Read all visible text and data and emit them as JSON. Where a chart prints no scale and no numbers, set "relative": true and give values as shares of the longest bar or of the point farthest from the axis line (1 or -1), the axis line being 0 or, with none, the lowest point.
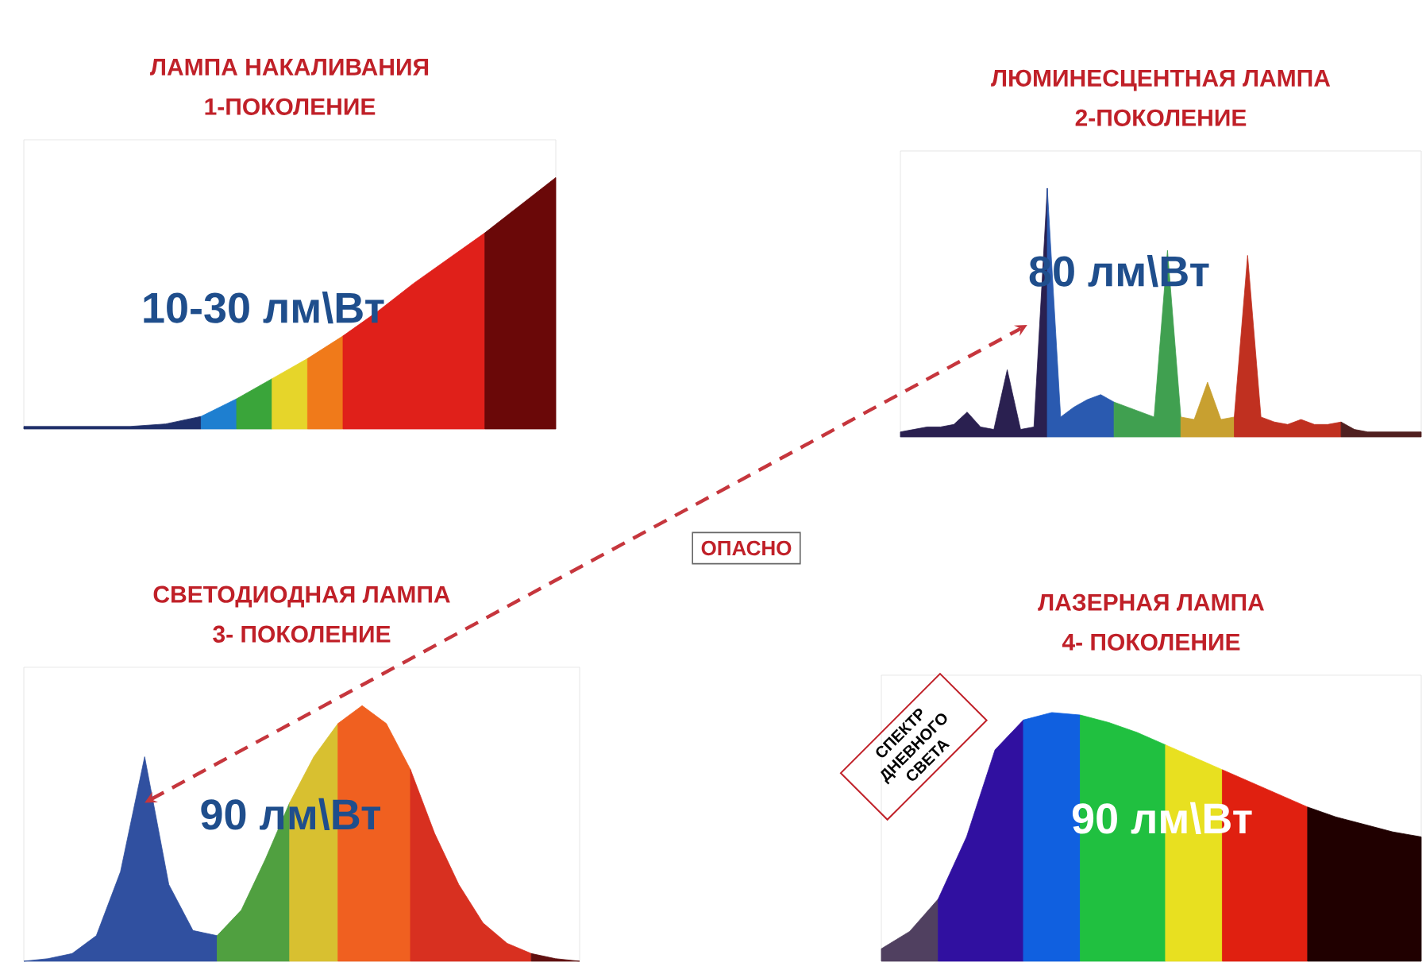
{
  "chart_data": [
    {
      "type": "area",
      "title": "ЛАМПА НАКАЛИВАНИЯ",
      "subtitle": "1-ПОКОЛЕНИЕ",
      "relative": true,
      "tick_labels": false,
      "annotations": [
        "10-30 лм\\Вт"
      ],
      "categories": [
        null,
        null,
        null,
        null,
        null,
        null,
        null,
        null,
        null,
        null,
        null,
        null,
        null,
        null,
        null,
        null
      ],
      "series": [
        {
          "color": "#1f2f6a",
          "values": [
            0.01,
            0.01,
            0.01,
            0.01,
            0.02,
            0.05,
            null,
            null,
            null,
            null,
            null,
            null,
            null,
            null,
            null,
            null
          ]
        },
        {
          "color": "#1e7fd0",
          "values": [
            null,
            null,
            null,
            null,
            null,
            0.05,
            0.12,
            null,
            null,
            null,
            null,
            null,
            null,
            null,
            null,
            null
          ]
        },
        {
          "color": "#3aa53a",
          "values": [
            null,
            null,
            null,
            null,
            null,
            null,
            0.12,
            0.2,
            null,
            null,
            null,
            null,
            null,
            null,
            null,
            null
          ]
        },
        {
          "color": "#e6d52a",
          "values": [
            null,
            null,
            null,
            null,
            null,
            null,
            null,
            0.2,
            0.28,
            null,
            null,
            null,
            null,
            null,
            null,
            null
          ]
        },
        {
          "color": "#f07a1a",
          "values": [
            null,
            null,
            null,
            null,
            null,
            null,
            null,
            null,
            0.28,
            0.37,
            null,
            null,
            null,
            null,
            null,
            null
          ]
        },
        {
          "color": "#e0201a",
          "values": [
            null,
            null,
            null,
            null,
            null,
            null,
            null,
            null,
            null,
            0.37,
            0.47,
            0.58,
            0.68,
            0.78,
            null,
            null
          ]
        },
        {
          "color": "#6a0808",
          "values": [
            null,
            null,
            null,
            null,
            null,
            null,
            null,
            null,
            null,
            null,
            null,
            null,
            null,
            0.78,
            0.89,
            1.0
          ]
        }
      ]
    },
    {
      "type": "area",
      "title": "ЛЮМИНЕСЦЕНТНАЯ ЛАМПА",
      "subtitle": "2-ПОКОЛЕНИЕ",
      "relative": true,
      "tick_labels": false,
      "annotations": [
        "80 лм\\Вт"
      ],
      "categories": [
        null,
        null,
        null,
        null,
        null,
        null,
        null,
        null,
        null,
        null,
        null,
        null,
        null,
        null,
        null,
        null,
        null,
        null,
        null,
        null,
        null,
        null,
        null,
        null,
        null,
        null,
        null,
        null,
        null,
        null,
        null,
        null,
        null,
        null,
        null,
        null,
        null,
        null,
        null,
        null
      ],
      "series": [
        {
          "color": "#2a2050",
          "values": [
            0.02,
            0.03,
            0.04,
            0.04,
            0.05,
            0.1,
            0.04,
            0.03,
            0.27,
            0.03,
            0.04,
            1.0,
            null,
            null,
            null,
            null,
            null,
            null,
            null,
            null,
            null,
            null,
            null,
            null,
            null,
            null,
            null,
            null,
            null,
            null,
            null,
            null,
            null,
            null,
            null,
            null,
            null,
            null,
            null,
            null
          ]
        },
        {
          "color": "#2a5ab0",
          "values": [
            null,
            null,
            null,
            null,
            null,
            null,
            null,
            null,
            null,
            null,
            null,
            1.0,
            0.08,
            0.12,
            0.15,
            0.17,
            0.14,
            null,
            null,
            null,
            null,
            null,
            null,
            null,
            null,
            null,
            null,
            null,
            null,
            null,
            null,
            null,
            null,
            null,
            null,
            null,
            null,
            null,
            null,
            null
          ]
        },
        {
          "color": "#40a050",
          "values": [
            null,
            null,
            null,
            null,
            null,
            null,
            null,
            null,
            null,
            null,
            null,
            null,
            null,
            null,
            null,
            null,
            0.14,
            0.12,
            0.1,
            0.08,
            0.75,
            0.08,
            null,
            null,
            null,
            null,
            null,
            null,
            null,
            null,
            null,
            null,
            null,
            null,
            null,
            null,
            null,
            null,
            null,
            null
          ]
        },
        {
          "color": "#c8a030",
          "values": [
            null,
            null,
            null,
            null,
            null,
            null,
            null,
            null,
            null,
            null,
            null,
            null,
            null,
            null,
            null,
            null,
            null,
            null,
            null,
            null,
            null,
            0.08,
            0.07,
            0.22,
            0.07,
            0.08,
            null,
            null,
            null,
            null,
            null,
            null,
            null,
            null,
            null,
            null,
            null,
            null,
            null,
            null
          ]
        },
        {
          "color": "#c03020",
          "values": [
            null,
            null,
            null,
            null,
            null,
            null,
            null,
            null,
            null,
            null,
            null,
            null,
            null,
            null,
            null,
            null,
            null,
            null,
            null,
            null,
            null,
            null,
            null,
            null,
            null,
            0.08,
            0.73,
            0.08,
            0.06,
            0.05,
            0.07,
            0.05,
            0.05,
            0.06,
            null,
            null,
            null,
            null,
            null,
            null
          ]
        },
        {
          "color": "#502020",
          "values": [
            null,
            null,
            null,
            null,
            null,
            null,
            null,
            null,
            null,
            null,
            null,
            null,
            null,
            null,
            null,
            null,
            null,
            null,
            null,
            null,
            null,
            null,
            null,
            null,
            null,
            null,
            null,
            null,
            null,
            null,
            null,
            null,
            null,
            0.06,
            0.03,
            0.02,
            0.02,
            0.02,
            0.02,
            0.02
          ]
        }
      ]
    },
    {
      "type": "area",
      "title": "СВЕТОДИОДНАЯ ЛАМПА",
      "subtitle": "3- ПОКОЛЕНИЕ",
      "relative": true,
      "tick_labels": false,
      "annotations": [
        "90 лм\\Вт",
        "ОПАСНО"
      ],
      "categories": [
        null,
        null,
        null,
        null,
        null,
        null,
        null,
        null,
        null,
        null,
        null,
        null,
        null,
        null,
        null,
        null,
        null,
        null,
        null,
        null,
        null,
        null,
        null,
        null
      ],
      "series": [
        {
          "color": "#3050a0",
          "values": [
            0,
            0.01,
            0.03,
            0.1,
            0.35,
            0.8,
            0.3,
            0.12,
            0.1,
            null,
            null,
            null,
            null,
            null,
            null,
            null,
            null,
            null,
            null,
            null,
            null,
            null,
            null,
            null
          ]
        },
        {
          "color": "#50a040",
          "values": [
            null,
            null,
            null,
            null,
            null,
            null,
            null,
            null,
            0.1,
            0.2,
            0.4,
            0.62,
            null,
            null,
            null,
            null,
            null,
            null,
            null,
            null,
            null,
            null,
            null,
            null
          ]
        },
        {
          "color": "#d8c030",
          "values": [
            null,
            null,
            null,
            null,
            null,
            null,
            null,
            null,
            null,
            null,
            null,
            0.62,
            0.8,
            0.93,
            null,
            null,
            null,
            null,
            null,
            null,
            null,
            null,
            null,
            null
          ]
        },
        {
          "color": "#f06020",
          "values": [
            null,
            null,
            null,
            null,
            null,
            null,
            null,
            null,
            null,
            null,
            null,
            null,
            null,
            0.93,
            1.0,
            0.93,
            0.75,
            null,
            null,
            null,
            null,
            null,
            null,
            null
          ]
        },
        {
          "color": "#d83020",
          "values": [
            null,
            null,
            null,
            null,
            null,
            null,
            null,
            null,
            null,
            null,
            null,
            null,
            null,
            null,
            null,
            null,
            0.75,
            0.5,
            0.3,
            0.15,
            0.07,
            0.03,
            null,
            null
          ]
        },
        {
          "color": "#601010",
          "values": [
            null,
            null,
            null,
            null,
            null,
            null,
            null,
            null,
            null,
            null,
            null,
            null,
            null,
            null,
            null,
            null,
            null,
            null,
            null,
            null,
            null,
            0.03,
            0.01,
            0
          ]
        }
      ]
    },
    {
      "type": "area",
      "title": "ЛАЗЕРНАЯ ЛАМПА",
      "subtitle": "4- ПОКОЛЕНИЕ",
      "relative": true,
      "tick_labels": false,
      "annotations": [
        "СПЕКТР ДНЕВНОГО СВЕТА",
        "90 лм\\Вт"
      ],
      "categories": [
        null,
        null,
        null,
        null,
        null,
        null,
        null,
        null,
        null,
        null,
        null,
        null,
        null,
        null,
        null,
        null,
        null,
        null,
        null,
        null
      ],
      "series": [
        {
          "color": "#504060",
          "values": [
            0.05,
            0.12,
            0.25,
            null,
            null,
            null,
            null,
            null,
            null,
            null,
            null,
            null,
            null,
            null,
            null,
            null,
            null,
            null,
            null,
            null
          ]
        },
        {
          "color": "#3010a0",
          "values": [
            null,
            null,
            0.25,
            0.5,
            0.85,
            0.97,
            null,
            null,
            null,
            null,
            null,
            null,
            null,
            null,
            null,
            null,
            null,
            null,
            null,
            null
          ]
        },
        {
          "color": "#1060e0",
          "values": [
            null,
            null,
            null,
            null,
            null,
            0.97,
            1.0,
            0.99,
            null,
            null,
            null,
            null,
            null,
            null,
            null,
            null,
            null,
            null,
            null,
            null
          ]
        },
        {
          "color": "#20c040",
          "values": [
            null,
            null,
            null,
            null,
            null,
            null,
            null,
            0.99,
            0.96,
            0.92,
            0.87,
            null,
            null,
            null,
            null,
            null,
            null,
            null,
            null,
            null
          ]
        },
        {
          "color": "#e8e020",
          "values": [
            null,
            null,
            null,
            null,
            null,
            null,
            null,
            null,
            null,
            null,
            0.87,
            0.82,
            0.77,
            null,
            null,
            null,
            null,
            null,
            null,
            null
          ]
        },
        {
          "color": "#e02010",
          "values": [
            null,
            null,
            null,
            null,
            null,
            null,
            null,
            null,
            null,
            null,
            null,
            null,
            0.77,
            0.72,
            0.67,
            0.62,
            null,
            null,
            null,
            null
          ]
        },
        {
          "color": "#200000",
          "values": [
            null,
            null,
            null,
            null,
            null,
            null,
            null,
            null,
            null,
            null,
            null,
            null,
            null,
            null,
            null,
            0.62,
            0.58,
            0.55,
            0.52,
            0.5
          ]
        }
      ]
    }
  ]
}
